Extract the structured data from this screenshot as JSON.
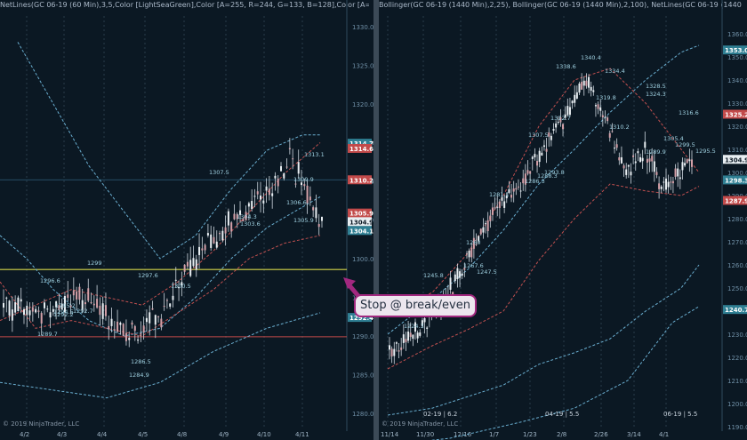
{
  "left_chart": {
    "title": "NetLines(GC 06-19 (60 Min),3,5,Color [LightSeaGreen],Color [A=255, R=244, G=133, B=128],Color [A=255, R=0, G=131, B",
    "copyright": "© 2019 NinjaTrader, LLC",
    "y_ticks": [
      "1330.0",
      "1325.0",
      "1320.0",
      "1315.0",
      "1310.0",
      "1305.0",
      "1300.0",
      "1295.0",
      "1290.0",
      "1285.0",
      "1280.0"
    ],
    "x_ticks": [
      "4/2",
      "4/3",
      "4/4",
      "4/5",
      "4/8",
      "4/9",
      "4/10",
      "4/11"
    ],
    "price_tags": [
      {
        "label": "1314.7",
        "kind": "cyan"
      },
      {
        "label": "1314.6",
        "kind": "red"
      },
      {
        "label": "1310.2",
        "kind": "red"
      },
      {
        "label": "1305.9",
        "kind": "red"
      },
      {
        "label": "1304.9",
        "kind": "white"
      },
      {
        "label": "1304.1",
        "kind": "cyan"
      },
      {
        "label": "1292.4",
        "kind": "cyan"
      }
    ],
    "annotations": [
      "1313.1",
      "1309.9",
      "1307.5",
      "1306.6",
      "1305.9",
      "1304.3",
      "1303.6",
      "1300.5",
      "1299",
      "1297.6",
      "1296.6",
      "1295.2",
      "1294.5",
      "1292.7",
      "1292.2",
      "1289.7",
      "1286.5",
      "1284.9"
    ]
  },
  "right_chart": {
    "title": "Bollinger(GC 06-19 (1440 Min),2,25), Bollinger(GC 06-19 (1440 Min),2,100), NetLines(GC 06-19 (1440 Min),3,5,Color",
    "copyright": "© 2019 NinjaTrader, LLC",
    "y_ticks": [
      "1360.0",
      "1350.0",
      "1340.0",
      "1330.0",
      "1320.0",
      "1310.0",
      "1300.0",
      "1290.0",
      "1280.0",
      "1270.0",
      "1260.0",
      "1250.0",
      "1240.0",
      "1230.0",
      "1220.0",
      "1210.0",
      "1200.0",
      "1190.0"
    ],
    "x_ticks": [
      "11/14",
      "11/30",
      "12/16",
      "1/7",
      "1/23",
      "2/8",
      "2/26",
      "3/14",
      "4/1"
    ],
    "session_labels": [
      "02-19 | 6.2",
      "04-19 | 5.5",
      "06-19 | 5.5"
    ],
    "price_tags": [
      {
        "label": "1353.0",
        "kind": "cyan"
      },
      {
        "label": "1325.2",
        "kind": "red"
      },
      {
        "label": "1304.9",
        "kind": "white"
      },
      {
        "label": "1298.3",
        "kind": "cyan"
      },
      {
        "label": "1287.9",
        "kind": "red"
      },
      {
        "label": "1240.7",
        "kind": "cyan"
      }
    ],
    "annotations": [
      "1340.4",
      "1338.6",
      "1334.4",
      "1328.5",
      "1324.3",
      "1319.8",
      "1316.6",
      "1312.7",
      "1310.2",
      "1307.5",
      "1305.4",
      "1299.5",
      "1295.5",
      "1293.8",
      "1289.9",
      "1288.3",
      "1286.3",
      "1281.1",
      "1267.6",
      "1260",
      "1247.5",
      "1245.8",
      "1224.3"
    ]
  },
  "callout": {
    "text": "Stop @ break/even"
  }
}
